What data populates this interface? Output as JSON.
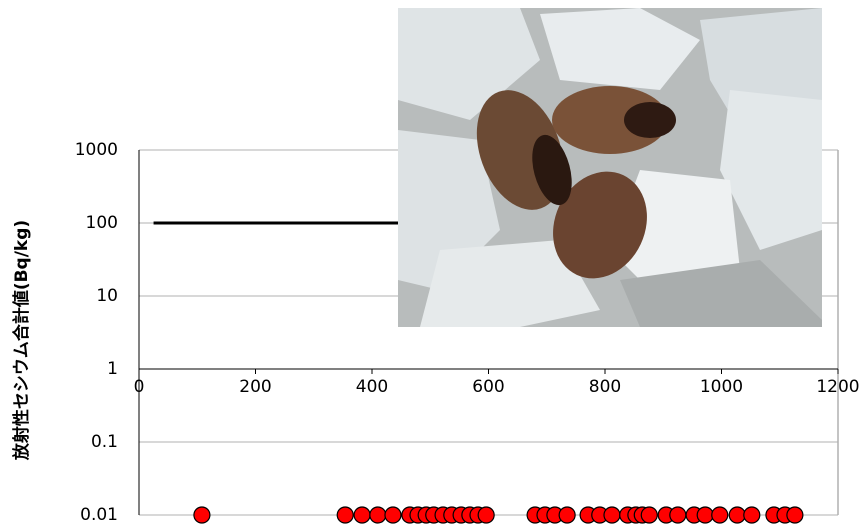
{
  "chart_data": {
    "type": "scatter",
    "y_label": "放射性セシウム合計値(Bq/kg)",
    "yscale": "log",
    "ylim": [
      0.01,
      1000
    ],
    "yticks": [
      1000,
      100,
      10,
      1,
      0.1,
      0.01
    ],
    "xlim": [
      0,
      1200
    ],
    "xticks": [
      0,
      200,
      400,
      600,
      800,
      1000,
      1200
    ],
    "grid": true,
    "series": [
      {
        "type": "line",
        "color": "#000000",
        "x": [
          25,
          1130
        ],
        "values": [
          100,
          100
        ]
      },
      {
        "type": "scatter",
        "color": "#ff0000",
        "x": [
          108,
          354,
          383,
          410,
          436,
          465,
          479,
          493,
          506,
          522,
          537,
          553,
          568,
          582,
          596,
          680,
          697,
          714,
          735,
          771,
          791,
          812,
          839,
          853,
          864,
          876,
          905,
          925,
          953,
          972,
          997,
          1027,
          1052,
          1090,
          1109,
          1126
        ],
        "values": [
          0.01,
          0.01,
          0.01,
          0.01,
          0.01,
          0.01,
          0.01,
          0.01,
          0.01,
          0.01,
          0.01,
          0.01,
          0.01,
          0.01,
          0.01,
          0.01,
          0.01,
          0.01,
          0.01,
          0.01,
          0.01,
          0.01,
          0.01,
          0.01,
          0.01,
          0.01,
          0.01,
          0.01,
          0.01,
          0.01,
          0.01,
          0.01,
          0.01,
          0.01,
          0.01,
          0.01
        ]
      }
    ]
  }
}
